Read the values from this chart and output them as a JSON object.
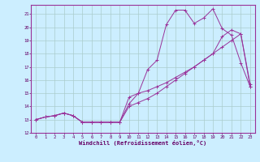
{
  "background_color": "#cceeff",
  "grid_color": "#aacccc",
  "line_color": "#993399",
  "xlim_min": -0.5,
  "xlim_max": 23.5,
  "ylim_min": 12,
  "ylim_max": 21.7,
  "xticks": [
    0,
    1,
    2,
    3,
    4,
    5,
    6,
    7,
    8,
    9,
    10,
    11,
    12,
    13,
    14,
    15,
    16,
    17,
    18,
    19,
    20,
    21,
    22,
    23
  ],
  "yticks": [
    12,
    13,
    14,
    15,
    16,
    17,
    18,
    19,
    20,
    21
  ],
  "xlabel": "Windchill (Refroidissement éolien,°C)",
  "line1_x": [
    0,
    1,
    2,
    3,
    4,
    5,
    6,
    7,
    8,
    9,
    10,
    11,
    12,
    13,
    14,
    15,
    16,
    17,
    18,
    19,
    20,
    21,
    22,
    23
  ],
  "line1_y": [
    13.0,
    13.2,
    13.3,
    13.5,
    13.3,
    12.8,
    12.8,
    12.8,
    12.8,
    12.8,
    14.7,
    15.0,
    15.2,
    15.5,
    15.8,
    16.2,
    16.6,
    17.0,
    17.5,
    18.0,
    18.5,
    19.0,
    19.5,
    15.7
  ],
  "line2_x": [
    0,
    1,
    2,
    3,
    4,
    5,
    6,
    7,
    8,
    9,
    10,
    11,
    12,
    13,
    14,
    15,
    16,
    17,
    18,
    19,
    20,
    21,
    22,
    23
  ],
  "line2_y": [
    13.0,
    13.2,
    13.3,
    13.5,
    13.3,
    12.8,
    12.8,
    12.8,
    12.8,
    12.8,
    14.2,
    15.0,
    16.8,
    17.5,
    20.2,
    21.3,
    21.3,
    20.3,
    20.7,
    21.4,
    19.9,
    19.4,
    17.3,
    15.5
  ],
  "line3_x": [
    0,
    1,
    2,
    3,
    4,
    5,
    6,
    7,
    8,
    9,
    10,
    11,
    12,
    13,
    14,
    15,
    16,
    17,
    18,
    19,
    20,
    21,
    22,
    23
  ],
  "line3_y": [
    13.0,
    13.2,
    13.3,
    13.5,
    13.3,
    12.8,
    12.8,
    12.8,
    12.8,
    12.8,
    14.0,
    14.3,
    14.6,
    15.0,
    15.5,
    16.0,
    16.5,
    17.0,
    17.5,
    18.0,
    19.3,
    19.8,
    19.5,
    15.5
  ]
}
